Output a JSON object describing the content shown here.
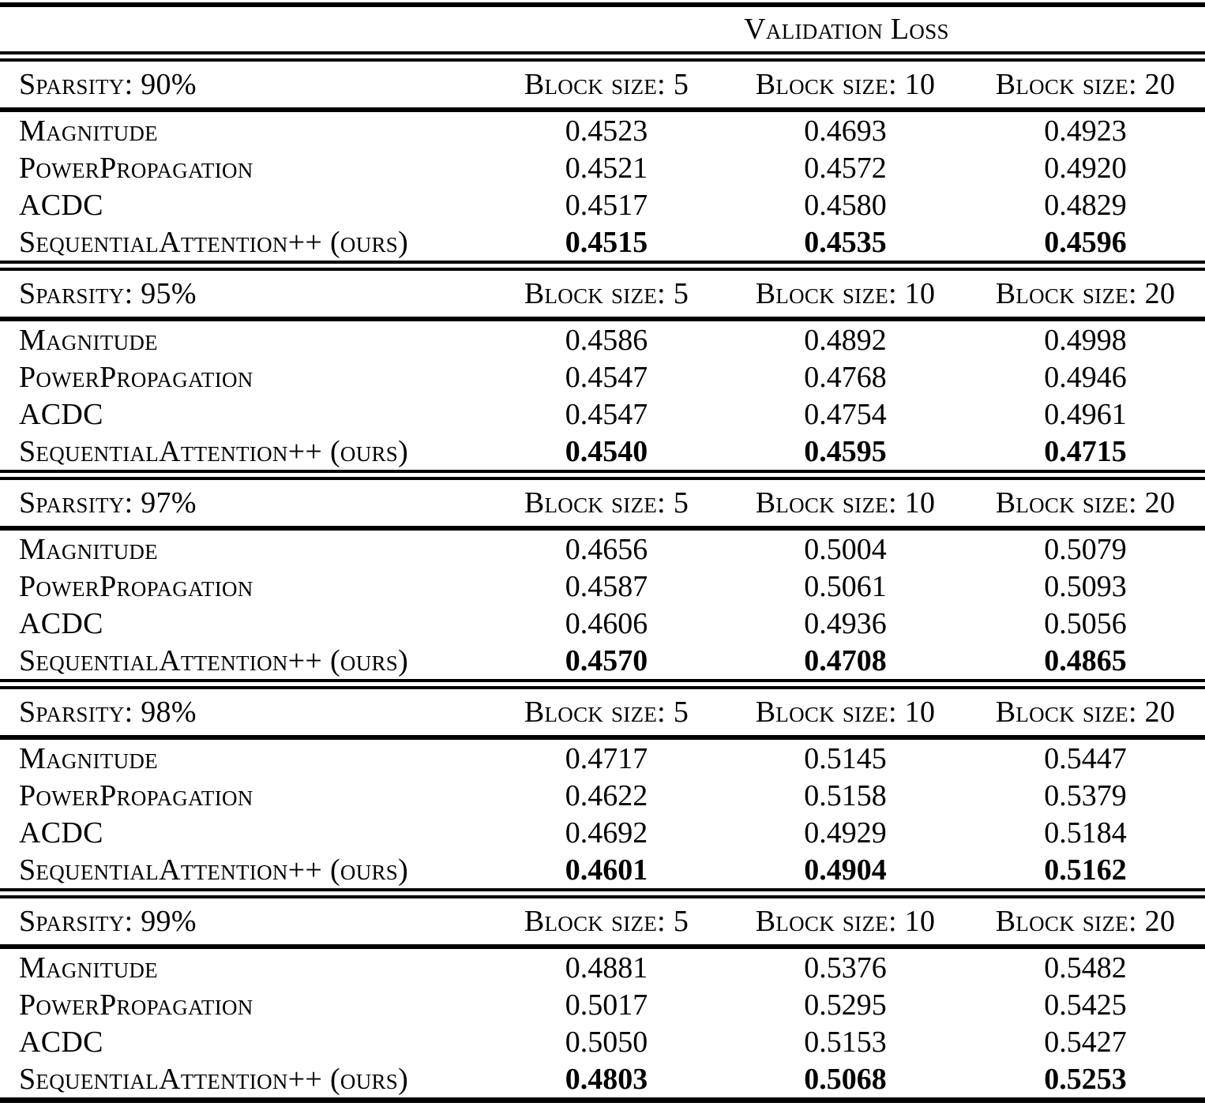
{
  "title": "Validation Loss",
  "column_headers": [
    "Block size: 5",
    "Block size: 10",
    "Block size: 20"
  ],
  "sections": [
    {
      "sparsity": "Sparsity: 90%",
      "rows": [
        {
          "method": "Magnitude",
          "v1": "0.4523",
          "v2": "0.4693",
          "v3": "0.4923"
        },
        {
          "method": "PowerPropagation",
          "v1": "0.4521",
          "v2": "0.4572",
          "v3": "0.4920"
        },
        {
          "method": "ACDC",
          "v1": "0.4517",
          "v2": "0.4580",
          "v3": "0.4829"
        },
        {
          "method": "SequentialAttention++ (ours)",
          "v1": "0.4515",
          "v2": "0.4535",
          "v3": "0.4596",
          "highlight": true
        }
      ]
    },
    {
      "sparsity": "Sparsity: 95%",
      "rows": [
        {
          "method": "Magnitude",
          "v1": "0.4586",
          "v2": "0.4892",
          "v3": "0.4998"
        },
        {
          "method": "PowerPropagation",
          "v1": "0.4547",
          "v2": "0.4768",
          "v3": "0.4946"
        },
        {
          "method": "ACDC",
          "v1": "0.4547",
          "v2": "0.4754",
          "v3": "0.4961"
        },
        {
          "method": "SequentialAttention++ (ours)",
          "v1": "0.4540",
          "v2": "0.4595",
          "v3": "0.4715",
          "highlight": true
        }
      ]
    },
    {
      "sparsity": "Sparsity: 97%",
      "rows": [
        {
          "method": "Magnitude",
          "v1": "0.4656",
          "v2": "0.5004",
          "v3": "0.5079"
        },
        {
          "method": "PowerPropagation",
          "v1": "0.4587",
          "v2": "0.5061",
          "v3": "0.5093"
        },
        {
          "method": "ACDC",
          "v1": "0.4606",
          "v2": "0.4936",
          "v3": "0.5056"
        },
        {
          "method": "SequentialAttention++ (ours)",
          "v1": "0.4570",
          "v2": "0.4708",
          "v3": "0.4865",
          "highlight": true
        }
      ]
    },
    {
      "sparsity": "Sparsity: 98%",
      "rows": [
        {
          "method": "Magnitude",
          "v1": "0.4717",
          "v2": "0.5145",
          "v3": "0.5447"
        },
        {
          "method": "PowerPropagation",
          "v1": "0.4622",
          "v2": "0.5158",
          "v3": "0.5379"
        },
        {
          "method": "ACDC",
          "v1": "0.4692",
          "v2": "0.4929",
          "v3": "0.5184"
        },
        {
          "method": "SequentialAttention++ (ours)",
          "v1": "0.4601",
          "v2": "0.4904",
          "v3": "0.5162",
          "highlight": true
        }
      ]
    },
    {
      "sparsity": "Sparsity: 99%",
      "rows": [
        {
          "method": "Magnitude",
          "v1": "0.4881",
          "v2": "0.5376",
          "v3": "0.5482"
        },
        {
          "method": "PowerPropagation",
          "v1": "0.5017",
          "v2": "0.5295",
          "v3": "0.5425"
        },
        {
          "method": "ACDC",
          "v1": "0.5050",
          "v2": "0.5153",
          "v3": "0.5427"
        },
        {
          "method": "SequentialAttention++ (ours)",
          "v1": "0.4803",
          "v2": "0.5068",
          "v3": "0.5253",
          "highlight": true
        }
      ]
    }
  ],
  "chart_data": {
    "type": "table",
    "title": "Validation Loss",
    "row_groups": [
      "Sparsity: 90%",
      "Sparsity: 95%",
      "Sparsity: 97%",
      "Sparsity: 98%",
      "Sparsity: 99%"
    ],
    "columns": [
      "Block size: 5",
      "Block size: 10",
      "Block size: 20"
    ],
    "methods": [
      "Magnitude",
      "PowerPropagation",
      "ACDC",
      "SequentialAttention++ (ours)"
    ],
    "values": {
      "90%": [
        [
          0.4523,
          0.4693,
          0.4923
        ],
        [
          0.4521,
          0.4572,
          0.492
        ],
        [
          0.4517,
          0.458,
          0.4829
        ],
        [
          0.4515,
          0.4535,
          0.4596
        ]
      ],
      "95%": [
        [
          0.4586,
          0.4892,
          0.4998
        ],
        [
          0.4547,
          0.4768,
          0.4946
        ],
        [
          0.4547,
          0.4754,
          0.4961
        ],
        [
          0.454,
          0.4595,
          0.4715
        ]
      ],
      "97%": [
        [
          0.4656,
          0.5004,
          0.5079
        ],
        [
          0.4587,
          0.5061,
          0.5093
        ],
        [
          0.4606,
          0.4936,
          0.5056
        ],
        [
          0.457,
          0.4708,
          0.4865
        ]
      ],
      "98%": [
        [
          0.4717,
          0.5145,
          0.5447
        ],
        [
          0.4622,
          0.5158,
          0.5379
        ],
        [
          0.4692,
          0.4929,
          0.5184
        ],
        [
          0.4601,
          0.4904,
          0.5162
        ]
      ],
      "99%": [
        [
          0.4881,
          0.5376,
          0.5482
        ],
        [
          0.5017,
          0.5295,
          0.5425
        ],
        [
          0.505,
          0.5153,
          0.5427
        ],
        [
          0.4803,
          0.5068,
          0.5253
        ]
      ]
    },
    "bold_rows": "SequentialAttention++ (ours) values are bold (best) in every group"
  }
}
